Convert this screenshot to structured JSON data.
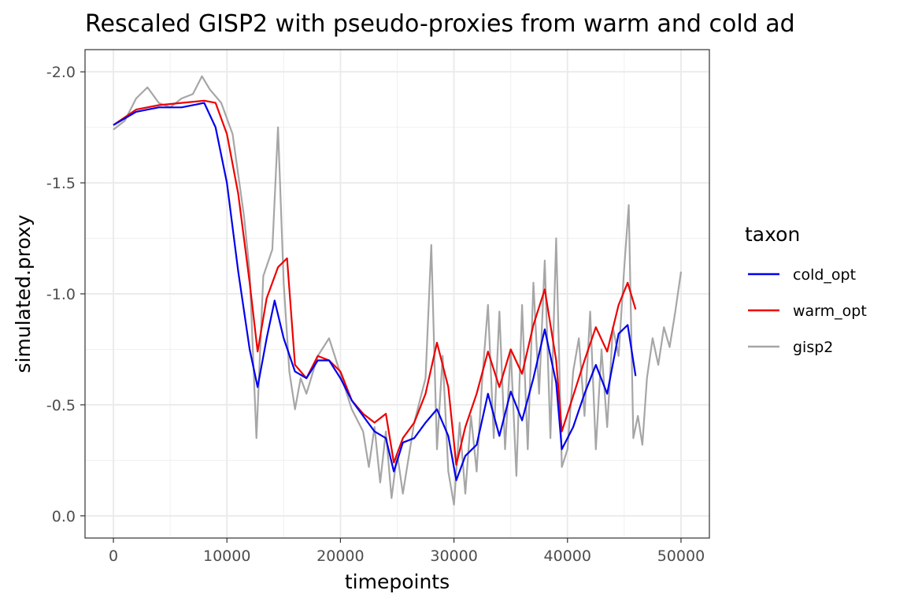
{
  "chart_data": {
    "type": "line",
    "title": "Rescaled GISP2 with pseudo-proxies from warm and cold ad",
    "xlabel": "timepoints",
    "ylabel": "simulated.proxy",
    "xlim": [
      -2500,
      52500
    ],
    "ylim": [
      2.1,
      -0.1
    ],
    "y_reversed": true,
    "x_ticks": [
      0,
      10000,
      20000,
      30000,
      40000,
      50000
    ],
    "x_tick_labels": [
      "0",
      "10000",
      "20000",
      "30000",
      "40000",
      "50000"
    ],
    "y_ticks": [
      2.0,
      1.5,
      1.0,
      0.5,
      0.0
    ],
    "y_tick_labels": [
      "-2.0",
      "-1.5",
      "-1.0",
      "-0.5",
      "0.0"
    ],
    "grid": true,
    "legend": {
      "title": "taxon",
      "placement": "right",
      "entries": [
        "cold_opt",
        "warm_opt",
        "gisp2"
      ]
    },
    "series": [
      {
        "name": "cold_opt",
        "color": "#0000ee",
        "x": [
          0,
          2000,
          4000,
          6000,
          8000,
          9000,
          10000,
          11000,
          12000,
          12700,
          13500,
          14200,
          15000,
          16000,
          17000,
          18000,
          19000,
          20000,
          21000,
          22000,
          23000,
          24000,
          24700,
          25500,
          26500,
          27500,
          28500,
          29500,
          30200,
          31000,
          32000,
          33000,
          34000,
          35000,
          36000,
          37000,
          38000,
          39000,
          39500,
          40500,
          41500,
          42500,
          43500,
          44500,
          45300,
          46000
        ],
        "values": [
          1.76,
          1.82,
          1.84,
          1.84,
          1.86,
          1.75,
          1.5,
          1.1,
          0.75,
          0.58,
          0.8,
          0.97,
          0.8,
          0.65,
          0.62,
          0.7,
          0.7,
          0.62,
          0.52,
          0.45,
          0.38,
          0.35,
          0.2,
          0.33,
          0.35,
          0.42,
          0.48,
          0.36,
          0.16,
          0.27,
          0.32,
          0.55,
          0.36,
          0.56,
          0.43,
          0.62,
          0.84,
          0.6,
          0.3,
          0.4,
          0.55,
          0.68,
          0.55,
          0.82,
          0.86,
          0.63
        ]
      },
      {
        "name": "warm_opt",
        "color": "#ee0000",
        "x": [
          0,
          2000,
          4000,
          6000,
          8000,
          9000,
          10000,
          11000,
          12000,
          12700,
          13500,
          14500,
          15300,
          16000,
          17000,
          18000,
          19000,
          20000,
          21000,
          22000,
          23000,
          24000,
          24700,
          25500,
          26500,
          27500,
          28500,
          29500,
          30200,
          31000,
          32000,
          33000,
          34000,
          35000,
          36000,
          37000,
          38000,
          39000,
          39500,
          40500,
          41500,
          42500,
          43500,
          44500,
          45300,
          46000
        ],
        "values": [
          1.76,
          1.83,
          1.85,
          1.86,
          1.87,
          1.86,
          1.72,
          1.45,
          1.05,
          0.74,
          0.98,
          1.12,
          1.16,
          0.68,
          0.62,
          0.72,
          0.7,
          0.65,
          0.52,
          0.46,
          0.42,
          0.46,
          0.24,
          0.35,
          0.42,
          0.55,
          0.78,
          0.58,
          0.23,
          0.4,
          0.55,
          0.74,
          0.58,
          0.75,
          0.64,
          0.86,
          1.02,
          0.7,
          0.38,
          0.54,
          0.7,
          0.85,
          0.74,
          0.95,
          1.05,
          0.93
        ]
      },
      {
        "name": "gisp2",
        "color": "#a6a6a6",
        "x": [
          0,
          1000,
          2000,
          3000,
          4000,
          5000,
          6000,
          7000,
          7800,
          8500,
          9500,
          10500,
          11500,
          12000,
          12600,
          13200,
          14000,
          14500,
          15000,
          15500,
          16000,
          16500,
          17000,
          18000,
          19000,
          20000,
          21000,
          22000,
          22500,
          23000,
          23500,
          24000,
          24500,
          25000,
          25500,
          26500,
          27500,
          28000,
          28500,
          29000,
          29500,
          30000,
          30500,
          31000,
          31500,
          32000,
          32500,
          33000,
          33500,
          34000,
          34500,
          35000,
          35500,
          36000,
          36500,
          37000,
          37500,
          38000,
          38500,
          39000,
          39500,
          40000,
          40500,
          41000,
          41500,
          42000,
          42500,
          43000,
          43500,
          44000,
          44500,
          45000,
          45400,
          45800,
          46200,
          46600,
          47000,
          47500,
          48000,
          48500,
          49000,
          49500,
          50000
        ],
        "values": [
          1.74,
          1.78,
          1.88,
          1.93,
          1.86,
          1.84,
          1.88,
          1.9,
          1.98,
          1.92,
          1.86,
          1.72,
          1.35,
          1.1,
          0.35,
          1.08,
          1.2,
          1.75,
          1.05,
          0.65,
          0.48,
          0.62,
          0.55,
          0.72,
          0.8,
          0.64,
          0.48,
          0.38,
          0.22,
          0.4,
          0.15,
          0.38,
          0.08,
          0.28,
          0.1,
          0.42,
          0.62,
          1.22,
          0.3,
          0.72,
          0.2,
          0.05,
          0.42,
          0.1,
          0.45,
          0.2,
          0.62,
          0.95,
          0.35,
          0.92,
          0.3,
          0.75,
          0.18,
          0.95,
          0.3,
          1.05,
          0.55,
          1.15,
          0.35,
          1.25,
          0.22,
          0.3,
          0.65,
          0.8,
          0.45,
          0.92,
          0.3,
          0.75,
          0.4,
          0.85,
          0.72,
          1.12,
          1.4,
          0.35,
          0.45,
          0.32,
          0.62,
          0.8,
          0.68,
          0.85,
          0.76,
          0.92,
          1.1
        ]
      }
    ]
  }
}
